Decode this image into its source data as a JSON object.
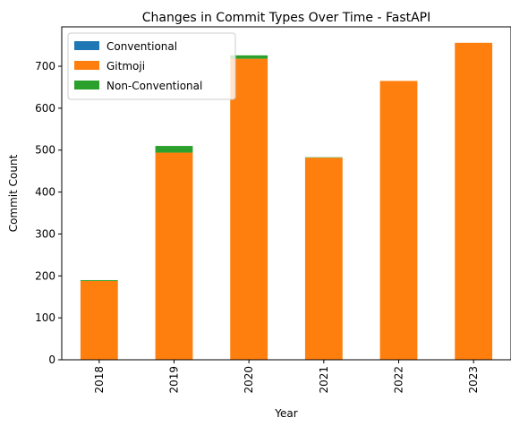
{
  "chart_data": {
    "type": "bar",
    "stacked": true,
    "title": "Changes in Commit Types Over Time - FastAPI",
    "xlabel": "Year",
    "ylabel": "Commit Count",
    "categories": [
      "2018",
      "2019",
      "2020",
      "2021",
      "2022",
      "2023"
    ],
    "series": [
      {
        "name": "Conventional",
        "color": "#1f77b4",
        "values": [
          0,
          0,
          0,
          0,
          0,
          0
        ]
      },
      {
        "name": "Gitmoji",
        "color": "#ff7f0e",
        "values": [
          188,
          494,
          718,
          482,
          665,
          756
        ]
      },
      {
        "name": "Non-Conventional",
        "color": "#2ca02c",
        "values": [
          2,
          16,
          8,
          1,
          0,
          0
        ]
      }
    ],
    "ylim": [
      0,
      794
    ],
    "yticks": [
      0,
      100,
      200,
      300,
      400,
      500,
      600,
      700
    ],
    "grid": false,
    "legend_position": "upper left"
  }
}
